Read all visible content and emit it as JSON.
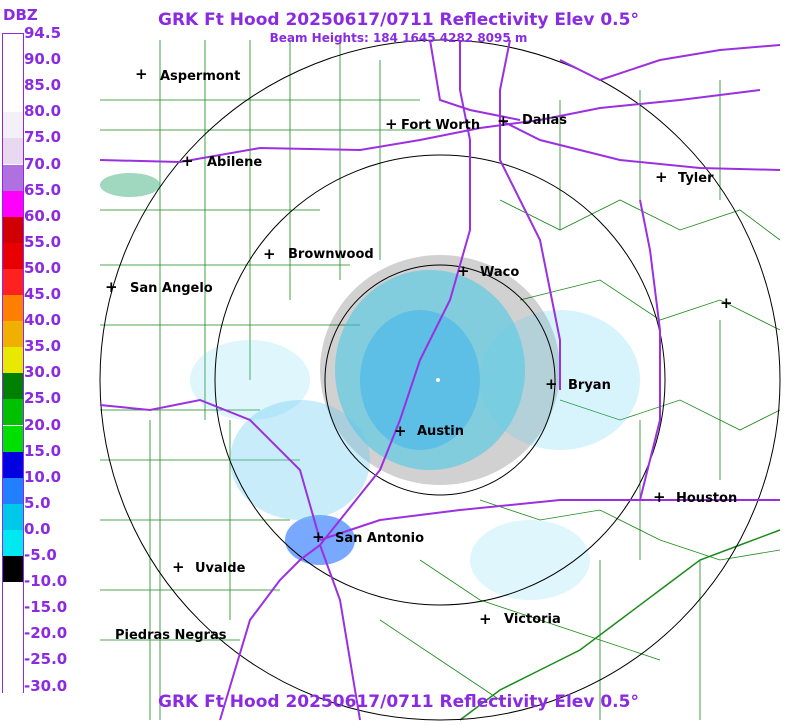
{
  "header": {
    "title": "GRK Ft Hood 20250617/0711 Reflectivity Elev 0.5°",
    "subtitle": "Beam Heights: 184 1645 4282 8095 m",
    "footer_title": "GRK Ft Hood 20250617/0711 Reflectivity Elev 0.5°"
  },
  "legend": {
    "unit": "DBZ",
    "levels": [
      "94.5",
      "90.0",
      "85.0",
      "80.0",
      "75.0",
      "70.0",
      "65.0",
      "60.0",
      "55.0",
      "50.0",
      "45.0",
      "40.0",
      "35.0",
      "30.0",
      "25.0",
      "20.0",
      "15.0",
      "10.0",
      "5.0",
      "0.0",
      "-5.0",
      "-10.0",
      "-15.0",
      "-20.0",
      "-25.0",
      "-30.0"
    ],
    "colors": [
      "#ffffff",
      "#ffffff",
      "#ffffff",
      "#f4f0f8",
      "#e8d8f0",
      "#b070e0",
      "#ff00ff",
      "#d00000",
      "#e80000",
      "#ff2020",
      "#ff8000",
      "#f0b000",
      "#e8e800",
      "#008000",
      "#00c000",
      "#00e000",
      "#0000e0",
      "#2080ff",
      "#00c8e8",
      "#00e8f0",
      "#000000",
      "#ffffff",
      "#ffffff",
      "#ffffff",
      "#ffffff",
      "#ffffff"
    ]
  },
  "map": {
    "cities": [
      {
        "name": "Aspermont",
        "label": "Aspermont"
      },
      {
        "name": "Fort-Worth",
        "label": "Fort Worth"
      },
      {
        "name": "Dallas",
        "label": "Dallas"
      },
      {
        "name": "Abilene",
        "label": "Abilene"
      },
      {
        "name": "Tyler",
        "label": "Tyler"
      },
      {
        "name": "Brownwood",
        "label": "Brownwood"
      },
      {
        "name": "Waco",
        "label": "Waco"
      },
      {
        "name": "San-Angelo",
        "label": "San Angelo"
      },
      {
        "name": "Bryan",
        "label": "Bryan"
      },
      {
        "name": "Austin",
        "label": "Austin"
      },
      {
        "name": "Houston",
        "label": "Houston"
      },
      {
        "name": "San-Antonio",
        "label": "San Antonio"
      },
      {
        "name": "Uvalde",
        "label": "Uvalde"
      },
      {
        "name": "Victoria",
        "label": "Victoria"
      },
      {
        "name": "Piedras-Negras",
        "label": "Piedras Negras"
      }
    ]
  }
}
